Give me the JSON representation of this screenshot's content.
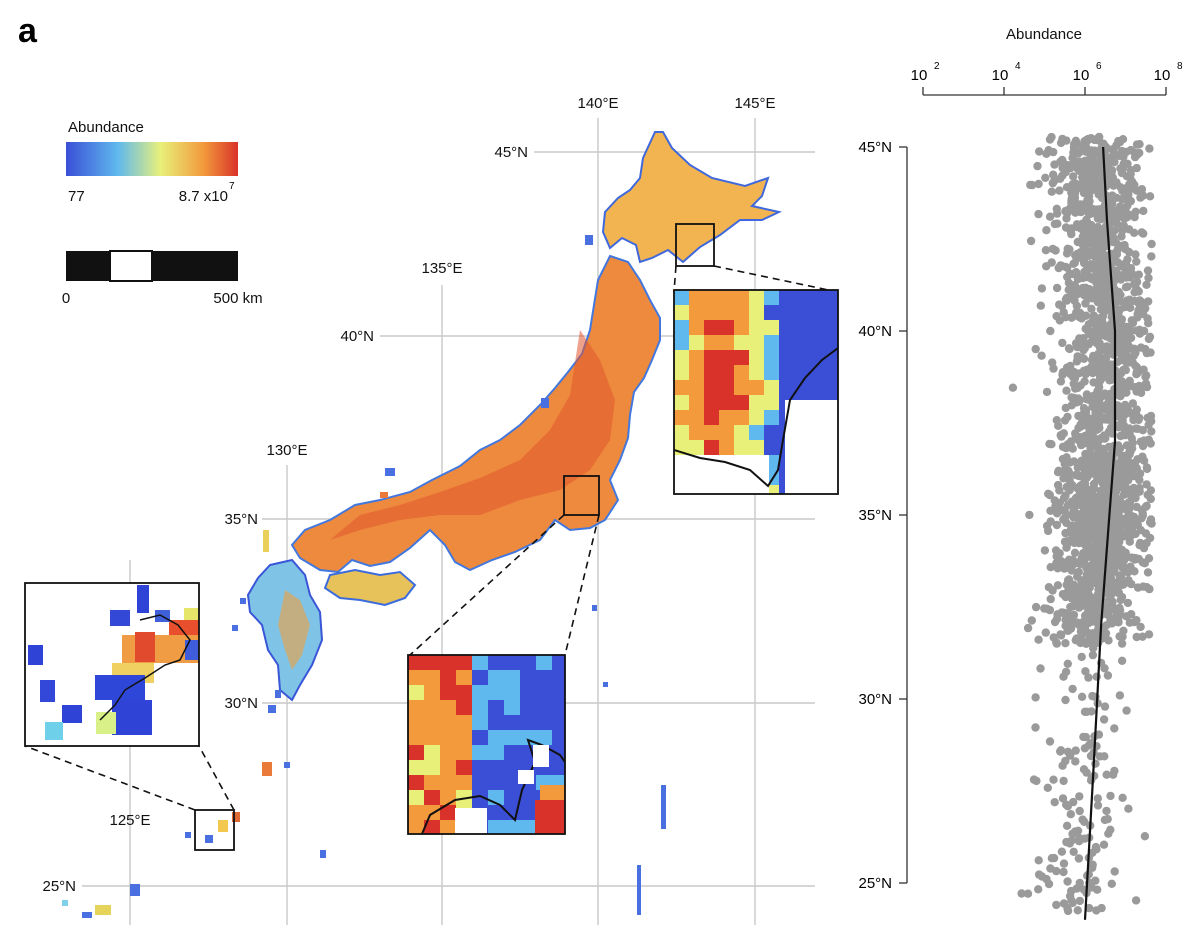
{
  "panel_label": "a",
  "map": {
    "legend": {
      "title": "Abundance",
      "min_label": "77",
      "max_base": "8.7 x10",
      "max_exp": "7",
      "colors": [
        "#3a4fd6",
        "#5fb8ee",
        "#e8f07a",
        "#f29a3c",
        "#d9322a"
      ]
    },
    "scalebar": {
      "start_label": "0",
      "end_label": "500 km"
    },
    "lon_labels": [
      "125°E",
      "130°E",
      "135°E",
      "140°E",
      "145°E"
    ],
    "lat_labels": [
      "25°N",
      "30°N",
      "35°N",
      "40°N",
      "45°N"
    ],
    "insets": [
      "Hokkaido coast inset",
      "Tokyo Bay inset",
      "Okinawa inset"
    ]
  },
  "chart_data": {
    "type": "scatter",
    "title": "",
    "xlabel": "Abundance",
    "ylabel": "",
    "x_scale": "log",
    "xlim": [
      100,
      100000000
    ],
    "x_ticks": [
      {
        "base": "10",
        "exp": "2"
      },
      {
        "base": "10",
        "exp": "4"
      },
      {
        "base": "10",
        "exp": "6"
      },
      {
        "base": "10",
        "exp": "8"
      }
    ],
    "ylim": [
      24,
      45
    ],
    "y_ticks": [
      "25°N",
      "30°N",
      "35°N",
      "40°N",
      "45°N"
    ],
    "point_color": "#9a9a9a",
    "grid": false,
    "points_note": "several thousand grid cells, abundance per latitude",
    "trend_line": {
      "color": "#111111",
      "points": [
        [
          1000000,
          24
        ],
        [
          1600000,
          28
        ],
        [
          2500000,
          32
        ],
        [
          4000000,
          35
        ],
        [
          5500000,
          37
        ],
        [
          5500000,
          40
        ],
        [
          3500000,
          43
        ],
        [
          2800000,
          45
        ]
      ]
    }
  }
}
